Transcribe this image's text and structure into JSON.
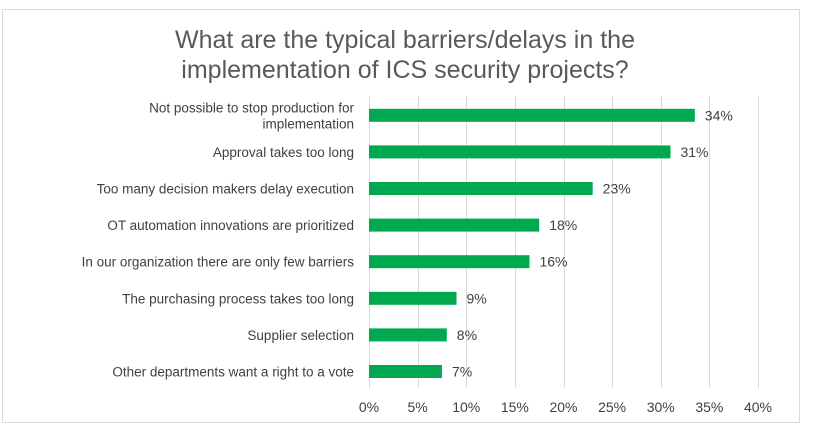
{
  "chart_data": {
    "type": "bar",
    "orientation": "horizontal",
    "title": "What are the typical barriers/delays in the implementation of ICS security projects?",
    "title_lines": [
      "What are the typical barriers/delays in the",
      "implementation of ICS security projects?"
    ],
    "categories": [
      [
        "Not possible to stop production for",
        "implementation"
      ],
      [
        "Approval takes too long"
      ],
      [
        "Too many decision makers delay execution"
      ],
      [
        "OT automation innovations are prioritized"
      ],
      [
        "In our organization there are only few barriers"
      ],
      [
        "The purchasing process takes too long"
      ],
      [
        "Supplier selection"
      ],
      [
        "Other departments want a right to a vote"
      ]
    ],
    "values": [
      33.5,
      31,
      23,
      17.5,
      16.5,
      9,
      8,
      7.5
    ],
    "value_labels": [
      "34%",
      "31%",
      "23%",
      "18%",
      "16%",
      "9%",
      "8%",
      "7%"
    ],
    "xlim": [
      0,
      40
    ],
    "xticks": [
      0,
      5,
      10,
      15,
      20,
      25,
      30,
      35,
      40
    ],
    "xtick_labels": [
      "0%",
      "5%",
      "10%",
      "15%",
      "20%",
      "25%",
      "30%",
      "35%",
      "40%"
    ],
    "grid": "vertical",
    "bar_color": "#00a84f",
    "grid_color": "#d9d9d9",
    "xlabel": "",
    "ylabel": ""
  }
}
